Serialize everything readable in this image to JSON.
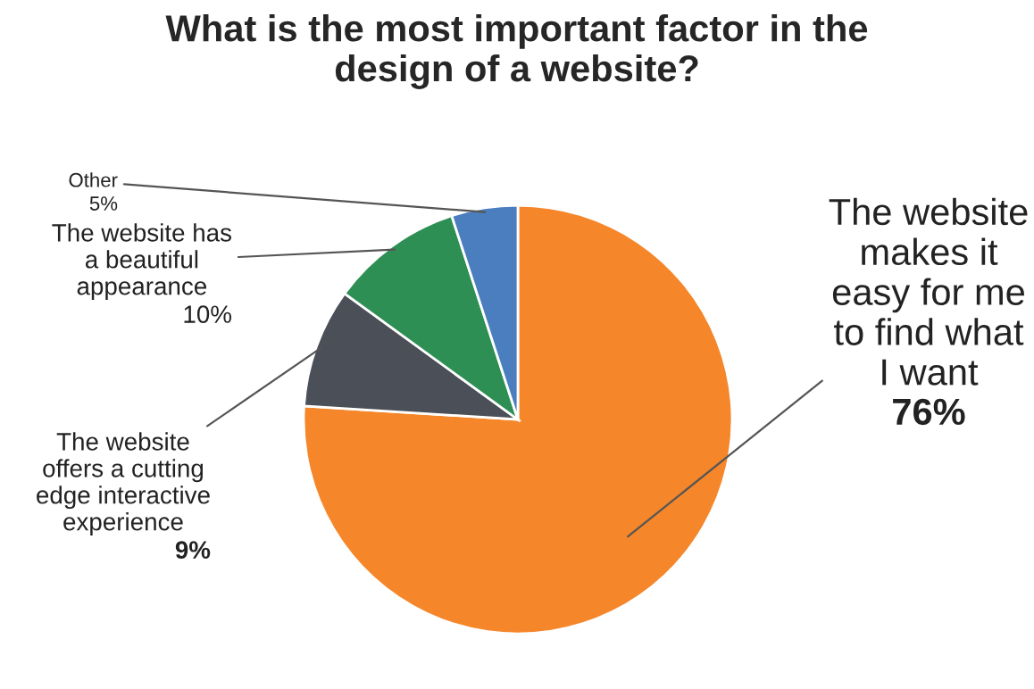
{
  "chart_data": {
    "type": "pie",
    "title": "What is the most important factor in the\ndesign of a website?",
    "categories": [
      "The website\nmakes it\neasy for me\nto find what\nI want",
      "The website\noffers a cutting\nedge interactive\nexperience",
      "The website has\na beautiful\nappearance",
      "Other"
    ],
    "values": [
      76,
      9,
      10,
      5
    ],
    "value_labels": [
      "76%",
      "9%",
      "10%",
      "5%"
    ],
    "colors": [
      "#f5862a",
      "#4b5058",
      "#2e8f55",
      "#4a7ebf"
    ],
    "legend": false
  }
}
